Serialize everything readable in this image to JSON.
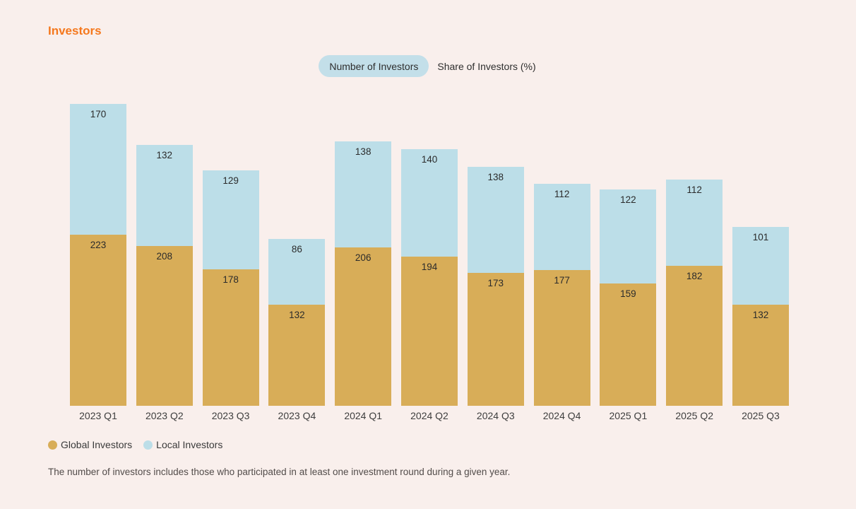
{
  "page": {
    "background": "#F9EFEC"
  },
  "header": {
    "title": "Investors",
    "title_color": "#F5781D"
  },
  "tabs": [
    {
      "label": "Number of Investors",
      "selected": true
    },
    {
      "label": "Share of Investors (%)",
      "selected": false
    }
  ],
  "chart_data": {
    "type": "bar",
    "stacked": true,
    "title": "Investors",
    "categories": [
      "2023 Q1",
      "2023 Q2",
      "2023 Q3",
      "2023 Q4",
      "2024 Q1",
      "2024 Q2",
      "2024 Q3",
      "2024 Q4",
      "2025 Q1",
      "2025 Q2",
      "2025 Q3"
    ],
    "series": [
      {
        "name": "Global Investors",
        "color": "#D8AD58",
        "values": [
          223,
          208,
          178,
          132,
          206,
          194,
          173,
          177,
          159,
          182,
          132
        ]
      },
      {
        "name": "Local Investors",
        "color": "#BCDEE8",
        "values": [
          170,
          132,
          129,
          86,
          138,
          140,
          138,
          112,
          122,
          112,
          101
        ]
      }
    ],
    "value_labels": true,
    "legend_position": "bottom",
    "xlabel": "",
    "ylabel": ""
  },
  "legend": {
    "items": [
      {
        "label": "Global Investors",
        "color": "#D8AD58"
      },
      {
        "label": "Local Investors",
        "color": "#BCDEE8"
      }
    ]
  },
  "footnote": "The number of investors includes those who participated in at least one investment round during a given year."
}
